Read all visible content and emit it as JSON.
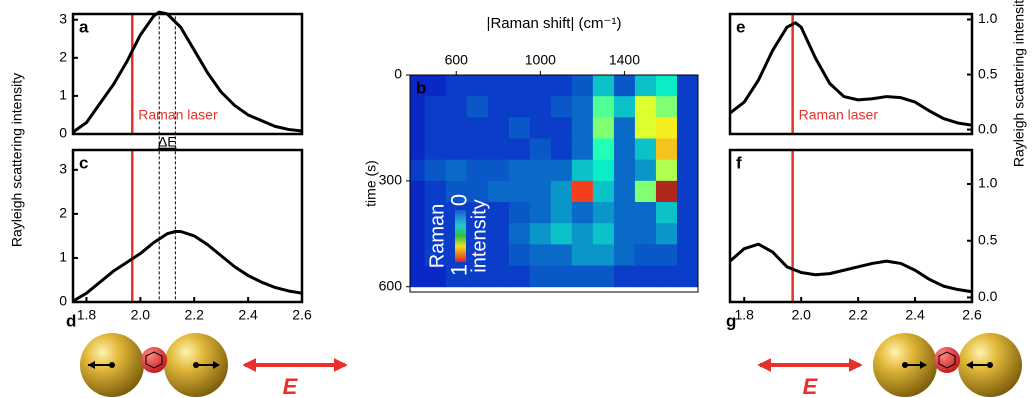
{
  "chart_data": [
    {
      "type": "line",
      "panel": "a",
      "ylabel": "Rayleigh scattering intensity",
      "x": [
        1.75,
        1.8,
        1.85,
        1.9,
        1.95,
        2.0,
        2.05,
        2.07,
        2.1,
        2.15,
        2.2,
        2.25,
        2.3,
        2.35,
        2.4,
        2.45,
        2.5,
        2.55,
        2.6
      ],
      "series": [
        {
          "color": "#000000",
          "values": [
            0.05,
            0.3,
            0.8,
            1.3,
            1.9,
            2.6,
            3.1,
            3.2,
            3.15,
            2.8,
            2.2,
            1.6,
            1.1,
            0.75,
            0.5,
            0.35,
            0.2,
            0.12,
            0.08
          ]
        }
      ],
      "xlim": [
        1.75,
        2.6
      ],
      "ylim": [
        0,
        3.15
      ],
      "yticks": [
        0,
        1,
        2,
        3
      ],
      "annotations": [
        {
          "text": "Raman laser",
          "x": 1.97,
          "color": "#e8312a"
        }
      ]
    },
    {
      "type": "line",
      "panel": "c",
      "x": [
        1.75,
        1.8,
        1.85,
        1.9,
        1.95,
        2.0,
        2.05,
        2.1,
        2.13,
        2.15,
        2.2,
        2.25,
        2.3,
        2.35,
        2.4,
        2.45,
        2.5,
        2.55,
        2.6
      ],
      "series": [
        {
          "color": "#000000",
          "values": [
            0.02,
            0.2,
            0.45,
            0.7,
            0.9,
            1.1,
            1.35,
            1.55,
            1.6,
            1.6,
            1.5,
            1.3,
            1.05,
            0.8,
            0.6,
            0.45,
            0.33,
            0.25,
            0.2
          ]
        }
      ],
      "xlim": [
        1.75,
        2.6
      ],
      "ylim": [
        0,
        3.45
      ],
      "yticks": [
        0,
        1,
        2,
        3
      ],
      "xticks": [
        1.8,
        {
          "value": 2,
          "label": "2.0"
        },
        2.2,
        2.4,
        2.6
      ],
      "laser_x": 1.97,
      "delta": {
        "text": "ΔE",
        "x": [
          2.07,
          2.13
        ]
      }
    },
    {
      "type": "heatmap",
      "panel": "b",
      "xlabel": "|Raman shift| (cm⁻¹)",
      "ylabel": "time (s)",
      "xlim": [
        380,
        1750
      ],
      "ylim": [
        0,
        615
      ],
      "xticks": [
        600,
        1000,
        1400
      ],
      "yticks": [
        0,
        300,
        600
      ],
      "x": [
        400,
        500,
        600,
        700,
        800,
        900,
        1000,
        1100,
        1200,
        1300,
        1400,
        1500,
        1600,
        1700
      ],
      "y": [
        30,
        90,
        150,
        210,
        270,
        330,
        390,
        450,
        510,
        570
      ],
      "values": [
        [
          0.12,
          0.12,
          0.15,
          0.15,
          0.15,
          0.15,
          0.15,
          0.15,
          0.18,
          0.3,
          0.18,
          0.3,
          0.35,
          0.15
        ],
        [
          0.12,
          0.15,
          0.15,
          0.18,
          0.15,
          0.15,
          0.15,
          0.18,
          0.2,
          0.45,
          0.3,
          0.6,
          0.5,
          0.15
        ],
        [
          0.12,
          0.15,
          0.15,
          0.15,
          0.15,
          0.18,
          0.15,
          0.15,
          0.2,
          0.5,
          0.2,
          0.6,
          0.65,
          0.15
        ],
        [
          0.12,
          0.15,
          0.15,
          0.15,
          0.15,
          0.15,
          0.18,
          0.15,
          0.2,
          0.4,
          0.2,
          0.3,
          0.7,
          0.15
        ],
        [
          0.15,
          0.18,
          0.2,
          0.18,
          0.18,
          0.2,
          0.2,
          0.2,
          0.3,
          0.35,
          0.2,
          0.25,
          0.55,
          0.15
        ],
        [
          0.12,
          0.15,
          0.18,
          0.18,
          0.2,
          0.2,
          0.2,
          0.25,
          0.85,
          0.3,
          0.2,
          0.5,
          0.95,
          0.15
        ],
        [
          0.12,
          0.15,
          0.15,
          0.15,
          0.15,
          0.18,
          0.2,
          0.25,
          0.2,
          0.25,
          0.2,
          0.2,
          0.3,
          0.15
        ],
        [
          0.12,
          0.15,
          0.15,
          0.15,
          0.15,
          0.2,
          0.25,
          0.3,
          0.25,
          0.3,
          0.2,
          0.2,
          0.25,
          0.15
        ],
        [
          0.12,
          0.15,
          0.15,
          0.15,
          0.15,
          0.18,
          0.2,
          0.2,
          0.25,
          0.25,
          0.2,
          0.18,
          0.18,
          0.15
        ],
        [
          0.12,
          0.12,
          0.15,
          0.15,
          0.15,
          0.15,
          0.18,
          0.18,
          0.18,
          0.18,
          0.15,
          0.15,
          0.15,
          0.15
        ]
      ],
      "colorbar": {
        "label": [
          "Raman",
          "intensity"
        ],
        "ticks": [
          0,
          1
        ]
      }
    },
    {
      "type": "line",
      "panel": "e",
      "ylabel": "Rayleigh scattering intensity",
      "x": [
        1.75,
        1.8,
        1.85,
        1.9,
        1.95,
        1.98,
        2.0,
        2.05,
        2.1,
        2.15,
        2.2,
        2.25,
        2.3,
        2.35,
        2.4,
        2.45,
        2.5,
        2.55,
        2.6
      ],
      "series": [
        {
          "color": "#000000",
          "values": [
            0.15,
            0.25,
            0.45,
            0.72,
            0.93,
            0.97,
            0.93,
            0.65,
            0.42,
            0.3,
            0.27,
            0.28,
            0.3,
            0.29,
            0.25,
            0.17,
            0.1,
            0.06,
            0.04
          ]
        }
      ],
      "xlim": [
        1.75,
        2.6
      ],
      "ylim": [
        -0.04,
        1.05
      ],
      "yticks": [
        {
          "value": 0,
          "label": "0.0"
        },
        0.5,
        {
          "value": 1,
          "label": "1.0"
        }
      ],
      "annotations": [
        {
          "text": "Raman laser",
          "x": 1.97,
          "color": "#e8312a"
        }
      ]
    },
    {
      "type": "line",
      "panel": "f",
      "x": [
        1.75,
        1.8,
        1.85,
        1.9,
        1.95,
        2.0,
        2.05,
        2.1,
        2.15,
        2.2,
        2.25,
        2.3,
        2.35,
        2.4,
        2.45,
        2.5,
        2.55,
        2.6
      ],
      "series": [
        {
          "color": "#000000",
          "values": [
            0.32,
            0.43,
            0.47,
            0.4,
            0.27,
            0.22,
            0.2,
            0.21,
            0.24,
            0.27,
            0.3,
            0.32,
            0.3,
            0.24,
            0.16,
            0.1,
            0.07,
            0.05
          ]
        }
      ],
      "xlim": [
        1.75,
        2.6
      ],
      "ylim": [
        -0.04,
        1.3
      ],
      "yticks": [
        {
          "value": 0,
          "label": "0.0"
        },
        0.5,
        {
          "value": 1,
          "label": "1.0"
        }
      ],
      "xticks": [
        1.8,
        {
          "value": 2,
          "label": "2.0"
        },
        2.2,
        2.4,
        2.6
      ],
      "laser_x": 1.97
    }
  ],
  "diagrams": [
    {
      "panel": "d",
      "field": "E"
    },
    {
      "panel": "g",
      "field": "E"
    }
  ]
}
